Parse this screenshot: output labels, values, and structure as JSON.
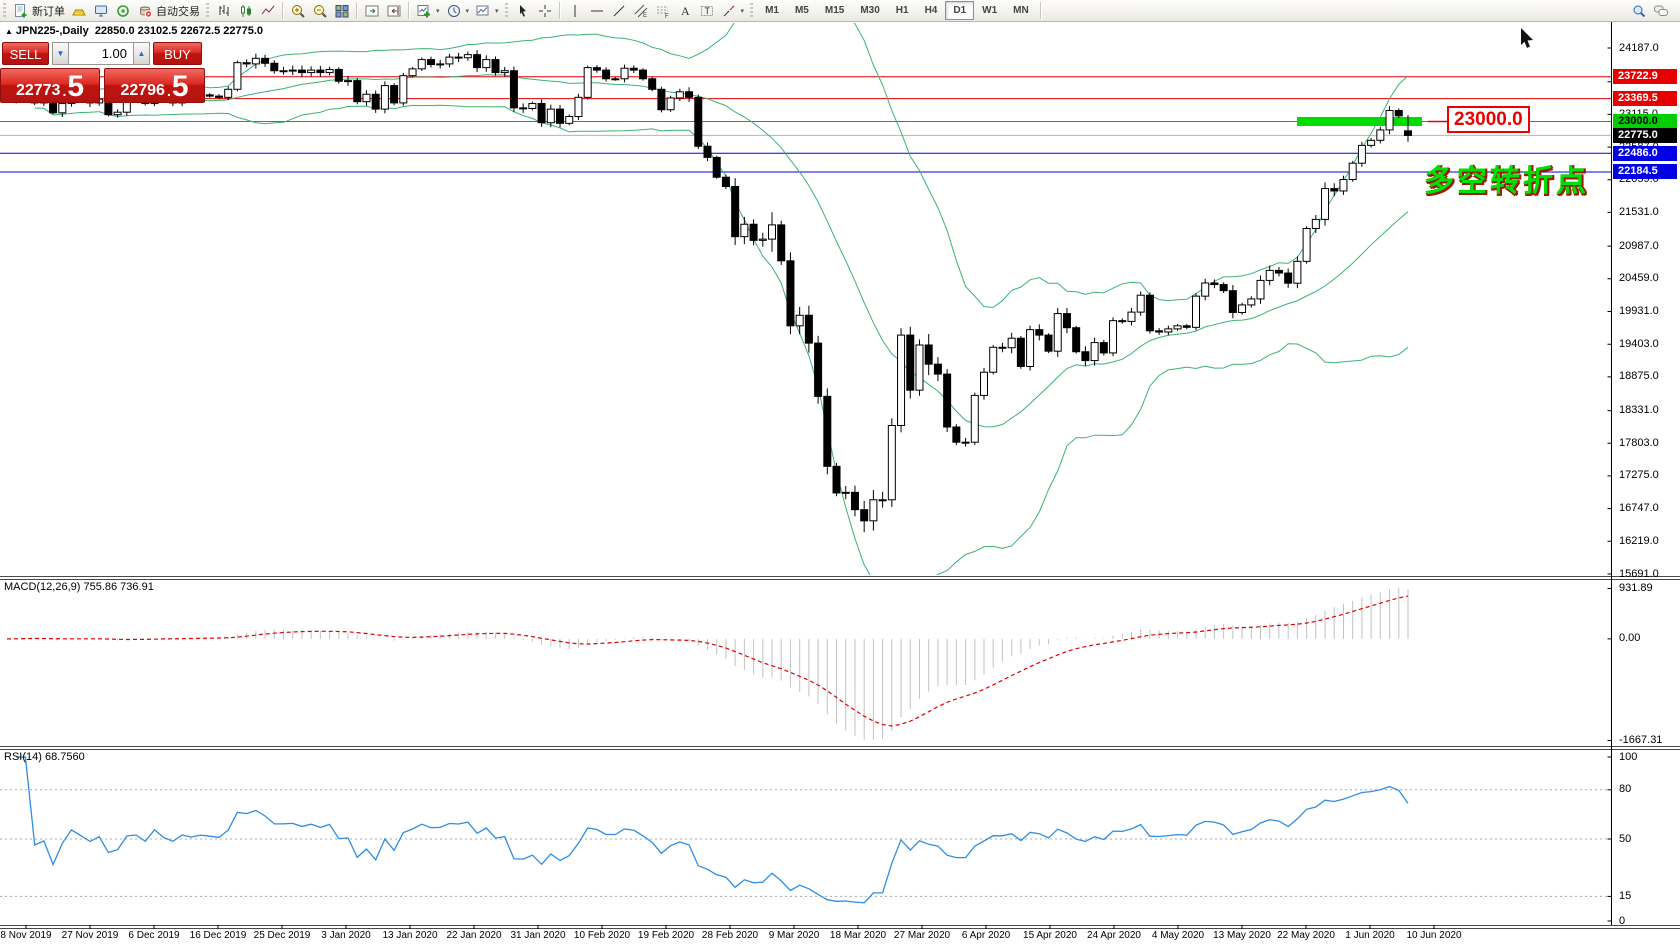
{
  "toolbar": {
    "new_order_label": "新订单",
    "autotrade_label": "自动交易",
    "timeframes": [
      "M1",
      "M5",
      "M15",
      "M30",
      "H1",
      "H4",
      "D1",
      "W1",
      "MN"
    ],
    "active_timeframe": "D1",
    "icon_names": [
      "new-order-icon",
      "gold-icon",
      "metaeditor-icon",
      "signals-icon",
      "autotrade-icon",
      "bar-chart-icon",
      "candlestick-chart-icon",
      "line-chart-icon",
      "zoom-in-icon",
      "zoom-out-icon",
      "tile-windows-icon",
      "scroll-to-end-icon",
      "chart-shift-icon",
      "new-chart-icon",
      "period-clock-icon",
      "template-icon",
      "cursor-icon",
      "crosshair-icon",
      "vertical-line-icon",
      "horizontal-line-icon",
      "trendline-icon",
      "equidistant-channel-icon",
      "fibonacci-icon",
      "text-icon",
      "text-label-icon",
      "arrows-icon",
      "search-icon",
      "chat-icon"
    ]
  },
  "trade_panel": {
    "sell_label": "SELL",
    "buy_label": "BUY",
    "volume": "1.00",
    "sell_price_main": "22773",
    "sell_price_dot": ".",
    "sell_price_big": "5",
    "buy_price_main": "22796",
    "buy_price_dot": ".",
    "buy_price_big": "5"
  },
  "chart": {
    "title_symbol": "JPN225-,Daily",
    "title_ohlc": "22850.0 23102.5 22672.5 22775.0"
  },
  "annotations": {
    "level_label": "23000.0",
    "cn_text": "多空转折点"
  },
  "chart_data": {
    "type": "candlestick",
    "symbol": "JPN225-",
    "period": "Daily",
    "ohlc_display": {
      "open": 22850.0,
      "high": 23102.5,
      "low": 22672.5,
      "close": 22775.0
    },
    "x_dates": [
      "8 Nov 2019",
      "27 Nov 2019",
      "6 Dec 2019",
      "16 Dec 2019",
      "25 Dec 2019",
      "3 Jan 2020",
      "13 Jan 2020",
      "22 Jan 2020",
      "31 Jan 2020",
      "10 Feb 2020",
      "19 Feb 2020",
      "28 Feb 2020",
      "9 Mar 2020",
      "18 Mar 2020",
      "27 Mar 2020",
      "6 Apr 2020",
      "15 Apr 2020",
      "24 Apr 2020",
      "4 May 2020",
      "13 May 2020",
      "22 May 2020",
      "1 Jun 2020",
      "10 Jun 2020"
    ],
    "y_axis": {
      "top": 24187.0,
      "bottom": 15691.0,
      "ticks": [
        "24187.0",
        "23643.0",
        "23115.0",
        "22587.0",
        "22059.0",
        "21531.0",
        "20987.0",
        "20459.0",
        "19931.0",
        "19403.0",
        "18875.0",
        "18331.0",
        "17803.0",
        "17275.0",
        "16747.0",
        "16219.0",
        "15691.0"
      ]
    },
    "closes": [
      23330,
      23390,
      23520,
      23300,
      23320,
      23140,
      23290,
      23430,
      23370,
      23300,
      23360,
      23110,
      23150,
      23390,
      23410,
      23290,
      23530,
      23380,
      23300,
      23430,
      23390,
      23430,
      23410,
      23390,
      23520,
      23950,
      23930,
      24020,
      23940,
      23820,
      23820,
      23830,
      23790,
      23830,
      23790,
      23840,
      23650,
      23660,
      23320,
      23440,
      23200,
      23580,
      23300,
      23740,
      23850,
      24000,
      23920,
      23930,
      24040,
      24030,
      24080,
      23870,
      24000,
      23790,
      23820,
      23220,
      23210,
      23290,
      22980,
      23200,
      22970,
      23080,
      23390,
      23870,
      23830,
      23690,
      23690,
      23860,
      23830,
      23690,
      23520,
      23190,
      23380,
      23480,
      23390,
      22600,
      22420,
      22100,
      21950,
      21140,
      21340,
      21080,
      21100,
      21330,
      20750,
      19700,
      19870,
      19420,
      18560,
      17430,
      17000,
      17010,
      16730,
      16550,
      16890,
      16890,
      18090,
      19550,
      18660,
      19390,
      19080,
      18920,
      18065,
      17820,
      17820,
      18576,
      18950,
      19353,
      19346,
      19499,
      19043,
      19638,
      19550,
      19290,
      19897,
      19669,
      19281,
      19138,
      19429,
      19262,
      19783,
      19771,
      19921,
      20194,
      19619,
      19600,
      19650,
      19700,
      19675,
      20179,
      20391,
      20366,
      20267,
      19915,
      20037,
      20134,
      20433,
      20595,
      20552,
      20388,
      20741,
      21271,
      21419,
      21916,
      21878,
      22062,
      22326,
      22614,
      22696,
      22864,
      23178,
      23091,
      22775
    ],
    "first_open": 23370,
    "last_ohlc": [
      22850.0,
      23102.5,
      22672.5,
      22775.0
    ],
    "crash_low": 16365,
    "bollinger": {
      "period": 20,
      "deviation": 2,
      "color": "#3CB371"
    },
    "hlines": [
      {
        "price": 23722.9,
        "color": "#e60000",
        "label_bg": "#e60000",
        "label_fg": "#ffffff"
      },
      {
        "price": 23369.5,
        "color": "#e60000",
        "label_bg": "#e60000",
        "label_fg": "#ffffff"
      },
      {
        "price": 23000.0,
        "color": "#00b400",
        "label_bg": "#00ce00",
        "label_fg": "#000000"
      },
      {
        "price": 22775.0,
        "color": "#b4b4b4",
        "label_bg": "#000000",
        "label_fg": "#ffffff"
      },
      {
        "price": 22486.0,
        "color": "#0000e6",
        "label_bg": "#0000e6",
        "label_fg": "#ffffff"
      },
      {
        "price": 22184.5,
        "color": "#0000e6",
        "label_bg": "#0000e6",
        "label_fg": "#ffffff"
      }
    ],
    "green_bar": {
      "price": 23000.0,
      "color": "#00dd00"
    },
    "macd": {
      "label": "MACD(12,26,9)",
      "values": "755.86 736.91",
      "axis_max": "931.89",
      "axis_zero": "0.00",
      "axis_min": "-1667.31",
      "histogram_color": "#c2c2c2",
      "signal_color": "#e00000"
    },
    "rsi": {
      "label": "RSI(14)",
      "value": "68.7560",
      "axis": [
        "100",
        "80",
        "50",
        "15",
        "0"
      ],
      "levels": [
        80,
        50,
        15
      ],
      "line_color": "#2e8de0"
    }
  }
}
